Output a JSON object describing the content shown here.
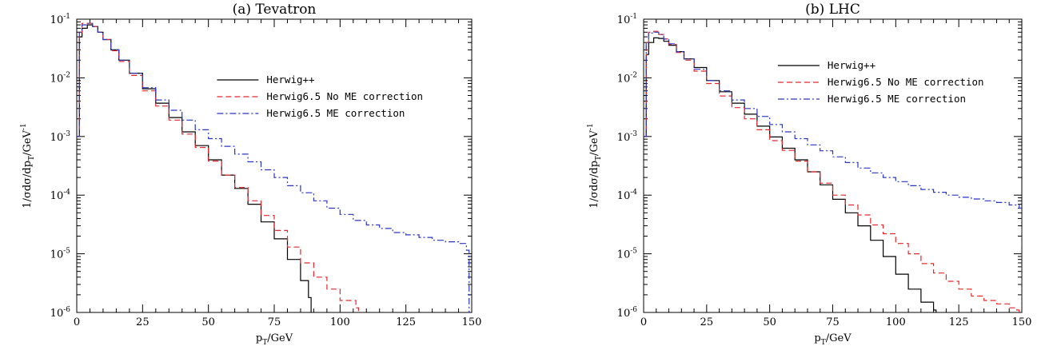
{
  "chart_data": [
    {
      "type": "line",
      "title": "(a) Tevatron",
      "xlabel": "p_T/GeV",
      "ylabel": "1/σdσ/dp_T/GeV^-1",
      "xlim": [
        0,
        150
      ],
      "ylim": [
        1e-06,
        0.1
      ],
      "yscale": "log",
      "x_ticks": [
        "0",
        "25",
        "50",
        "75",
        "100",
        "125",
        "150"
      ],
      "y_ticks": [
        {
          "base": "10",
          "exp": "-6"
        },
        {
          "base": "10",
          "exp": "-5"
        },
        {
          "base": "10",
          "exp": "-4"
        },
        {
          "base": "10",
          "exp": "-3"
        },
        {
          "base": "10",
          "exp": "-2"
        },
        {
          "base": "10",
          "exp": "-1"
        }
      ],
      "legend_position": "top-right",
      "series": [
        {
          "name": "Herwig++",
          "color": "#000000",
          "dash": "solid",
          "points": [
            [
              0,
              0.001
            ],
            [
              1,
              0.05
            ],
            [
              2,
              0.07
            ],
            [
              4,
              0.08
            ],
            [
              6,
              0.075
            ],
            [
              8,
              0.06
            ],
            [
              10,
              0.045
            ],
            [
              13,
              0.03
            ],
            [
              16,
              0.02
            ],
            [
              20,
              0.012
            ],
            [
              25,
              0.0065
            ],
            [
              30,
              0.0037
            ],
            [
              35,
              0.0021
            ],
            [
              40,
              0.0012
            ],
            [
              45,
              0.0007
            ],
            [
              50,
              0.0004
            ],
            [
              55,
              0.00022
            ],
            [
              60,
              0.00013
            ],
            [
              65,
              7e-05
            ],
            [
              70,
              3.5e-05
            ],
            [
              75,
              1.8e-05
            ],
            [
              80,
              8e-06
            ],
            [
              85,
              3.5e-06
            ],
            [
              88,
              1.8e-06
            ]
          ]
        },
        {
          "name": "Herwig6.5 No ME correction",
          "color": "#e8262b",
          "dash": "dashed",
          "points": [
            [
              0,
              0.001
            ],
            [
              1,
              0.06
            ],
            [
              2,
              0.085
            ],
            [
              4,
              0.085
            ],
            [
              6,
              0.075
            ],
            [
              8,
              0.06
            ],
            [
              10,
              0.045
            ],
            [
              13,
              0.029
            ],
            [
              16,
              0.019
            ],
            [
              20,
              0.011
            ],
            [
              25,
              0.006
            ],
            [
              30,
              0.0033
            ],
            [
              35,
              0.0019
            ],
            [
              40,
              0.0011
            ],
            [
              45,
              0.00065
            ],
            [
              50,
              0.00038
            ],
            [
              55,
              0.00022
            ],
            [
              60,
              0.000135
            ],
            [
              65,
              8e-05
            ],
            [
              70,
              4.5e-05
            ],
            [
              75,
              2.5e-05
            ],
            [
              80,
              1.3e-05
            ],
            [
              85,
              7e-06
            ],
            [
              90,
              4e-06
            ],
            [
              95,
              2.5e-06
            ],
            [
              100,
              1.6e-06
            ],
            [
              106,
              1.2e-06
            ]
          ]
        },
        {
          "name": "Herwig6.5 ME correction",
          "color": "#2a35c4",
          "dash": "dashdot",
          "points": [
            [
              0,
              0.001
            ],
            [
              1,
              0.06
            ],
            [
              2,
              0.08
            ],
            [
              4,
              0.085
            ],
            [
              6,
              0.075
            ],
            [
              8,
              0.06
            ],
            [
              10,
              0.045
            ],
            [
              13,
              0.03
            ],
            [
              16,
              0.02
            ],
            [
              20,
              0.012
            ],
            [
              25,
              0.0068
            ],
            [
              30,
              0.0042
            ],
            [
              35,
              0.0028
            ],
            [
              40,
              0.0019
            ],
            [
              45,
              0.0013
            ],
            [
              50,
              0.00092
            ],
            [
              55,
              0.00068
            ],
            [
              60,
              0.0005
            ],
            [
              65,
              0.00037
            ],
            [
              70,
              0.00027
            ],
            [
              75,
              0.0002
            ],
            [
              80,
              0.000145
            ],
            [
              85,
              0.00011
            ],
            [
              90,
              8e-05
            ],
            [
              95,
              6e-05
            ],
            [
              100,
              4.7e-05
            ],
            [
              105,
              3.7e-05
            ],
            [
              110,
              3.1e-05
            ],
            [
              115,
              2.7e-05
            ],
            [
              120,
              2.3e-05
            ],
            [
              125,
              2.1e-05
            ],
            [
              130,
              1.9e-05
            ],
            [
              135,
              1.7e-05
            ],
            [
              140,
              1.6e-05
            ],
            [
              145,
              1.5e-05
            ],
            [
              148,
              1.15e-05
            ]
          ]
        }
      ]
    },
    {
      "type": "line",
      "title": "(b) LHC",
      "xlabel": "p_T/GeV",
      "ylabel": "1/σdσ/dp_T/GeV^-1",
      "xlim": [
        0,
        150
      ],
      "ylim": [
        1e-06,
        0.1
      ],
      "yscale": "log",
      "x_ticks": [
        "0",
        "25",
        "50",
        "75",
        "100",
        "125",
        "150"
      ],
      "y_ticks": [
        {
          "base": "10",
          "exp": "-6"
        },
        {
          "base": "10",
          "exp": "-5"
        },
        {
          "base": "10",
          "exp": "-4"
        },
        {
          "base": "10",
          "exp": "-3"
        },
        {
          "base": "10",
          "exp": "-2"
        },
        {
          "base": "10",
          "exp": "-1"
        }
      ],
      "legend_position": "top-right",
      "series": [
        {
          "name": "Herwig++",
          "color": "#000000",
          "dash": "solid",
          "points": [
            [
              0,
              0.001
            ],
            [
              1,
              0.025
            ],
            [
              2,
              0.04
            ],
            [
              4,
              0.048
            ],
            [
              6,
              0.047
            ],
            [
              8,
              0.042
            ],
            [
              10,
              0.036
            ],
            [
              13,
              0.028
            ],
            [
              16,
              0.021
            ],
            [
              20,
              0.015
            ],
            [
              25,
              0.009
            ],
            [
              30,
              0.0058
            ],
            [
              35,
              0.0037
            ],
            [
              40,
              0.0024
            ],
            [
              45,
              0.0015
            ],
            [
              50,
              0.00098
            ],
            [
              55,
              0.00063
            ],
            [
              60,
              0.0004
            ],
            [
              65,
              0.00025
            ],
            [
              70,
              0.00015
            ],
            [
              75,
              8.5e-05
            ],
            [
              80,
              5e-05
            ],
            [
              85,
              3e-05
            ],
            [
              90,
              1.7e-05
            ],
            [
              95,
              9e-06
            ],
            [
              100,
              4.5e-06
            ],
            [
              105,
              2.5e-06
            ],
            [
              110,
              1.5e-06
            ],
            [
              115,
              1.1e-06
            ]
          ]
        },
        {
          "name": "Herwig6.5 No ME correction",
          "color": "#e8262b",
          "dash": "dashed",
          "points": [
            [
              0,
              0.001
            ],
            [
              1,
              0.04
            ],
            [
              2,
              0.06
            ],
            [
              4,
              0.062
            ],
            [
              6,
              0.055
            ],
            [
              8,
              0.046
            ],
            [
              10,
              0.037
            ],
            [
              13,
              0.027
            ],
            [
              16,
              0.02
            ],
            [
              20,
              0.013
            ],
            [
              25,
              0.008
            ],
            [
              30,
              0.0049
            ],
            [
              35,
              0.0031
            ],
            [
              40,
              0.002
            ],
            [
              45,
              0.0013
            ],
            [
              50,
              0.00085
            ],
            [
              55,
              0.00058
            ],
            [
              60,
              0.00038
            ],
            [
              65,
              0.00025
            ],
            [
              70,
              0.00016
            ],
            [
              75,
              0.0001
            ],
            [
              80,
              6.8e-05
            ],
            [
              85,
              4.6e-05
            ],
            [
              90,
              3.1e-05
            ],
            [
              95,
              2.2e-05
            ],
            [
              100,
              1.5e-05
            ],
            [
              105,
              1e-05
            ],
            [
              110,
              6.8e-06
            ],
            [
              115,
              4.7e-06
            ],
            [
              120,
              3.4e-06
            ],
            [
              125,
              2.5e-06
            ],
            [
              130,
              1.9e-06
            ],
            [
              135,
              1.6e-06
            ],
            [
              140,
              1.4e-06
            ],
            [
              145,
              1.2e-06
            ],
            [
              148,
              1.1e-06
            ]
          ]
        },
        {
          "name": "Herwig6.5 ME correction",
          "color": "#2a35c4",
          "dash": "dashdot",
          "points": [
            [
              0,
              0.001
            ],
            [
              1,
              0.04
            ],
            [
              2,
              0.058
            ],
            [
              4,
              0.06
            ],
            [
              6,
              0.055
            ],
            [
              8,
              0.046
            ],
            [
              10,
              0.038
            ],
            [
              13,
              0.028
            ],
            [
              16,
              0.021
            ],
            [
              20,
              0.014
            ],
            [
              25,
              0.009
            ],
            [
              30,
              0.006
            ],
            [
              35,
              0.0042
            ],
            [
              40,
              0.003
            ],
            [
              45,
              0.0022
            ],
            [
              50,
              0.0016
            ],
            [
              55,
              0.0012
            ],
            [
              60,
              0.00092
            ],
            [
              65,
              0.00072
            ],
            [
              70,
              0.00057
            ],
            [
              75,
              0.00045
            ],
            [
              80,
              0.00036
            ],
            [
              85,
              0.00029
            ],
            [
              90,
              0.00024
            ],
            [
              95,
              0.0002
            ],
            [
              100,
              0.00017
            ],
            [
              105,
              0.000145
            ],
            [
              110,
              0.000125
            ],
            [
              115,
              0.000112
            ],
            [
              120,
              0.0001
            ],
            [
              125,
              9.2e-05
            ],
            [
              130,
              8.6e-05
            ],
            [
              135,
              8e-05
            ],
            [
              140,
              7.5e-05
            ],
            [
              145,
              6.8e-05
            ],
            [
              149,
              6e-05
            ]
          ]
        }
      ]
    }
  ]
}
